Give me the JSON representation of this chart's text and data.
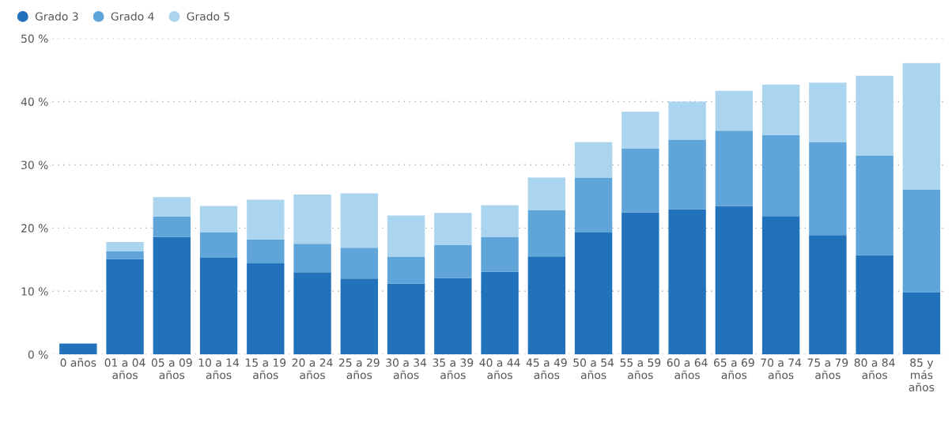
{
  "chart_data": {
    "type": "bar",
    "stacked": true,
    "categories": [
      "0 años",
      "01 a 04\naños",
      "05 a 09\naños",
      "10 a 14\naños",
      "15 a 19\naños",
      "20 a 24\naños",
      "25 a 29\naños",
      "30 a 34\naños",
      "35 a 39\naños",
      "40 a 44\naños",
      "45 a 49\naños",
      "50 a 54\naños",
      "55 a 59\naños",
      "60 a 64\naños",
      "65 a 69\naños",
      "70 a 74\naños",
      "75 a 79\naños",
      "80 a 84\naños",
      "85 y\nmás\naños"
    ],
    "series": [
      {
        "name": "Grado 3",
        "color": "#2272bb",
        "values": [
          1.7,
          15.1,
          18.6,
          15.3,
          14.4,
          13.0,
          12.0,
          11.2,
          12.1,
          13.1,
          15.5,
          19.3,
          22.5,
          23.0,
          23.5,
          21.9,
          18.9,
          15.7,
          9.8
        ]
      },
      {
        "name": "Grado 4",
        "color": "#5fa5d9",
        "values": [
          null,
          1.2,
          3.2,
          4.0,
          3.8,
          4.5,
          4.9,
          4.2,
          5.2,
          5.5,
          7.3,
          8.7,
          10.1,
          11.0,
          11.9,
          12.8,
          14.7,
          15.8,
          16.3
        ]
      },
      {
        "name": "Grado 5",
        "color": "#abd4ef",
        "values": [
          null,
          1.5,
          3.1,
          4.2,
          6.3,
          7.8,
          8.6,
          6.6,
          5.1,
          5.0,
          5.2,
          5.6,
          5.8,
          6.0,
          6.3,
          8.0,
          9.4,
          12.6,
          20.0
        ]
      }
    ],
    "ylim": [
      0,
      50
    ],
    "yticks": [
      {
        "value": 0,
        "label": "0 %"
      },
      {
        "value": 10,
        "label": "10 %"
      },
      {
        "value": 20,
        "label": "20 %"
      },
      {
        "value": 30,
        "label": "30 %"
      },
      {
        "value": 40,
        "label": "40 %"
      },
      {
        "value": 50,
        "label": "50 %"
      }
    ],
    "grid": "y",
    "legend": "top left"
  }
}
